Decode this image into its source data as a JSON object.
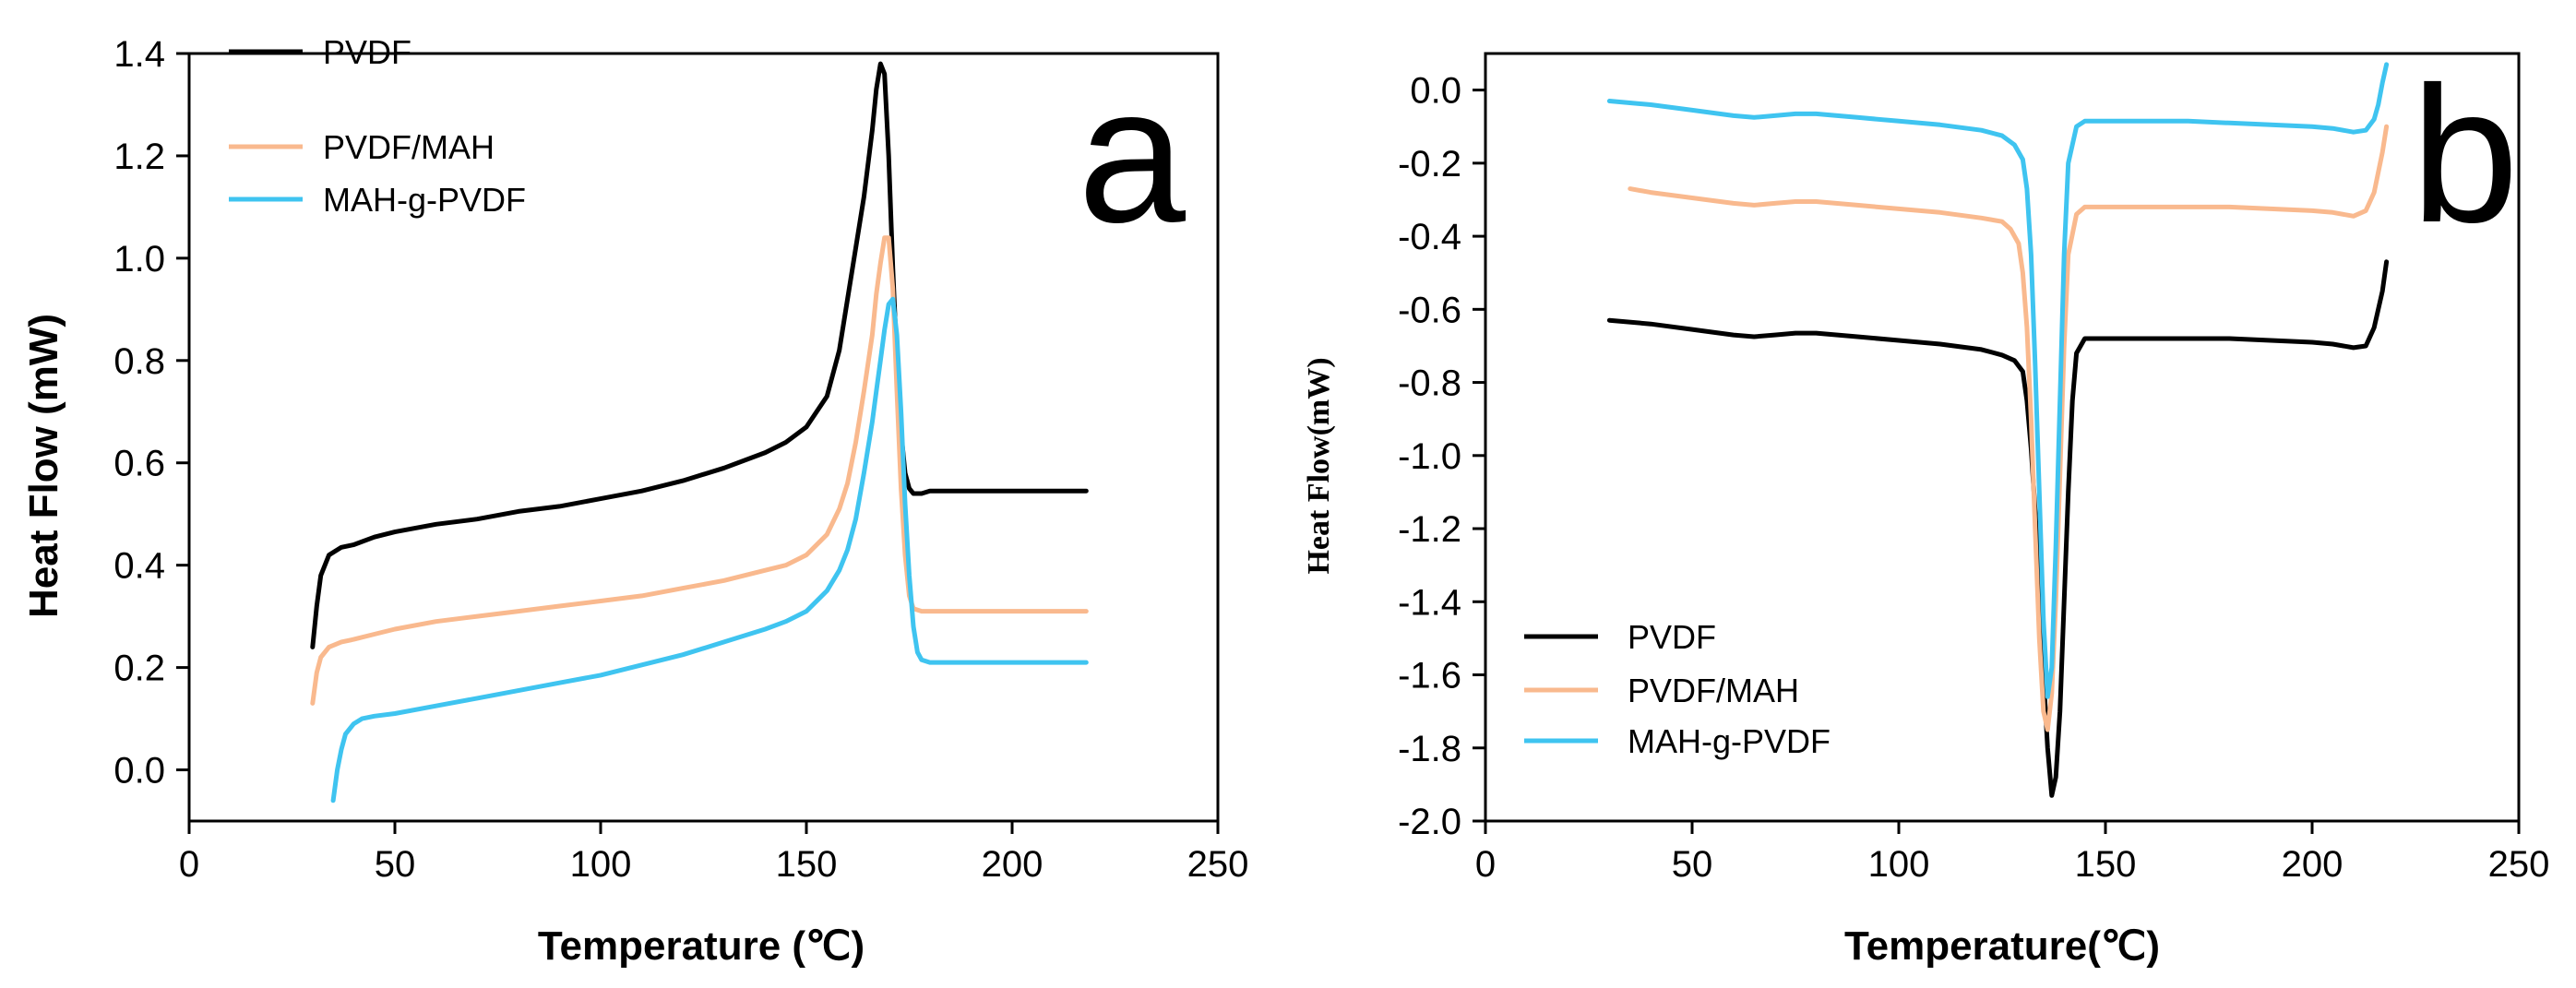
{
  "colors": {
    "PVDF": "#000000",
    "PVDF/MAH": "#f9b98e",
    "MAH-g-PVDF": "#3fc4f0"
  },
  "chart_data": [
    {
      "type": "line",
      "panel_label": "a",
      "xlabel": "Temperature (℃)",
      "ylabel": "Heat Flow (mW)",
      "xlim": [
        0,
        250
      ],
      "ylim": [
        -0.1,
        1.4
      ],
      "x_ticks": [
        0,
        50,
        100,
        150,
        200,
        250
      ],
      "y_ticks": [
        0.0,
        0.2,
        0.4,
        0.6,
        0.8,
        1.0,
        1.2,
        1.4
      ],
      "y_tick_labels": [
        "0.0",
        "0.2",
        "0.4",
        "0.6",
        "0.8",
        "1.0",
        "1.2",
        "1.4"
      ],
      "legend_position": "top-left",
      "series": [
        {
          "name": "PVDF",
          "color": "#000000",
          "x": [
            30,
            31,
            32,
            34,
            37,
            40,
            45,
            50,
            60,
            70,
            80,
            90,
            100,
            110,
            120,
            130,
            140,
            145,
            150,
            155,
            158,
            160,
            162,
            164,
            166,
            167,
            168,
            169,
            170,
            171,
            172,
            173,
            174,
            175,
            176,
            178,
            180,
            190,
            200,
            210,
            218
          ],
          "y": [
            0.24,
            0.32,
            0.38,
            0.42,
            0.435,
            0.44,
            0.455,
            0.465,
            0.48,
            0.49,
            0.505,
            0.515,
            0.53,
            0.545,
            0.565,
            0.59,
            0.62,
            0.64,
            0.67,
            0.73,
            0.82,
            0.92,
            1.02,
            1.12,
            1.25,
            1.33,
            1.38,
            1.36,
            1.2,
            0.98,
            0.8,
            0.66,
            0.58,
            0.55,
            0.54,
            0.54,
            0.545,
            0.545,
            0.545,
            0.545,
            0.545
          ]
        },
        {
          "name": "PVDF/MAH",
          "color": "#f9b98e",
          "x": [
            30,
            31,
            32,
            34,
            37,
            40,
            45,
            50,
            60,
            70,
            80,
            90,
            100,
            110,
            120,
            130,
            140,
            145,
            150,
            155,
            158,
            160,
            162,
            164,
            166,
            167,
            168,
            169,
            170,
            171,
            172,
            173,
            174,
            175,
            176,
            178,
            180,
            190,
            200,
            210,
            218
          ],
          "y": [
            0.13,
            0.19,
            0.22,
            0.24,
            0.25,
            0.255,
            0.265,
            0.275,
            0.29,
            0.3,
            0.31,
            0.32,
            0.33,
            0.34,
            0.355,
            0.37,
            0.39,
            0.4,
            0.42,
            0.46,
            0.51,
            0.56,
            0.64,
            0.74,
            0.85,
            0.93,
            0.99,
            1.04,
            1.04,
            0.94,
            0.74,
            0.55,
            0.42,
            0.34,
            0.315,
            0.31,
            0.31,
            0.31,
            0.31,
            0.31,
            0.31
          ]
        },
        {
          "name": "MAH-g-PVDF",
          "color": "#3fc4f0",
          "x": [
            35,
            36,
            37,
            38,
            40,
            42,
            45,
            50,
            60,
            70,
            80,
            90,
            100,
            110,
            120,
            130,
            140,
            145,
            150,
            155,
            158,
            160,
            162,
            164,
            166,
            167,
            168,
            169,
            170,
            171,
            172,
            173,
            174,
            175,
            176,
            177,
            178,
            180,
            190,
            200,
            210,
            218
          ],
          "y": [
            -0.06,
            0.0,
            0.04,
            0.07,
            0.09,
            0.1,
            0.105,
            0.11,
            0.125,
            0.14,
            0.155,
            0.17,
            0.185,
            0.205,
            0.225,
            0.25,
            0.275,
            0.29,
            0.31,
            0.35,
            0.39,
            0.43,
            0.49,
            0.58,
            0.68,
            0.74,
            0.8,
            0.86,
            0.91,
            0.92,
            0.85,
            0.7,
            0.52,
            0.38,
            0.28,
            0.23,
            0.215,
            0.21,
            0.21,
            0.21,
            0.21,
            0.21
          ]
        }
      ]
    },
    {
      "type": "line",
      "panel_label": "b",
      "xlabel": "Temperature(℃)",
      "ylabel": "Heat Flow(mW)",
      "xlim": [
        0,
        250
      ],
      "ylim": [
        -2.0,
        0.1
      ],
      "x_ticks": [
        0,
        50,
        100,
        150,
        200,
        250
      ],
      "y_ticks": [
        0.0,
        -0.2,
        -0.4,
        -0.6,
        -0.8,
        -1.0,
        -1.2,
        -1.4,
        -1.6,
        -1.8,
        -2.0
      ],
      "y_tick_labels": [
        "0.0",
        "-0.2",
        "-0.4",
        "-0.6",
        "-0.8",
        "-1.0",
        "-1.2",
        "-1.4",
        "-1.6",
        "-1.8",
        "-2.0"
      ],
      "legend_position": "bottom-left",
      "series": [
        {
          "name": "PVDF",
          "color": "#000000",
          "x": [
            30,
            40,
            50,
            60,
            65,
            70,
            75,
            80,
            90,
            100,
            110,
            120,
            125,
            128,
            130,
            131,
            132,
            133,
            134,
            135,
            136,
            137,
            138,
            139,
            140,
            141,
            142,
            143,
            145,
            150,
            160,
            170,
            180,
            190,
            200,
            205,
            210,
            213,
            215,
            217,
            218
          ],
          "y": [
            -0.63,
            -0.64,
            -0.655,
            -0.67,
            -0.675,
            -0.67,
            -0.665,
            -0.665,
            -0.675,
            -0.685,
            -0.695,
            -0.71,
            -0.725,
            -0.74,
            -0.77,
            -0.85,
            -0.98,
            -1.15,
            -1.35,
            -1.6,
            -1.8,
            -1.93,
            -1.88,
            -1.7,
            -1.4,
            -1.1,
            -0.85,
            -0.72,
            -0.68,
            -0.68,
            -0.68,
            -0.68,
            -0.68,
            -0.685,
            -0.69,
            -0.695,
            -0.705,
            -0.7,
            -0.65,
            -0.55,
            -0.47
          ]
        },
        {
          "name": "PVDF/MAH",
          "color": "#f9b98e",
          "x": [
            35,
            40,
            50,
            60,
            65,
            70,
            75,
            80,
            90,
            100,
            110,
            120,
            125,
            127,
            129,
            130,
            131,
            132,
            133,
            134,
            135,
            136,
            137,
            138,
            139,
            140,
            141,
            143,
            145,
            150,
            160,
            170,
            180,
            190,
            200,
            205,
            210,
            213,
            215,
            217,
            218
          ],
          "y": [
            -0.27,
            -0.28,
            -0.295,
            -0.31,
            -0.315,
            -0.31,
            -0.305,
            -0.305,
            -0.315,
            -0.325,
            -0.335,
            -0.35,
            -0.36,
            -0.38,
            -0.42,
            -0.5,
            -0.65,
            -0.9,
            -1.2,
            -1.5,
            -1.7,
            -1.75,
            -1.65,
            -1.4,
            -1.05,
            -0.7,
            -0.45,
            -0.34,
            -0.32,
            -0.32,
            -0.32,
            -0.32,
            -0.32,
            -0.325,
            -0.33,
            -0.335,
            -0.345,
            -0.33,
            -0.28,
            -0.17,
            -0.1
          ]
        },
        {
          "name": "MAH-g-PVDF",
          "color": "#3fc4f0",
          "x": [
            30,
            40,
            50,
            60,
            65,
            70,
            75,
            80,
            90,
            100,
            110,
            120,
            125,
            128,
            130,
            131,
            132,
            133,
            134,
            135,
            136,
            137,
            138,
            139,
            140,
            141,
            143,
            145,
            150,
            160,
            170,
            180,
            190,
            200,
            205,
            210,
            213,
            215,
            216,
            217,
            218
          ],
          "y": [
            -0.03,
            -0.04,
            -0.055,
            -0.07,
            -0.075,
            -0.07,
            -0.065,
            -0.065,
            -0.075,
            -0.085,
            -0.095,
            -0.11,
            -0.125,
            -0.15,
            -0.19,
            -0.27,
            -0.45,
            -0.75,
            -1.1,
            -1.45,
            -1.66,
            -1.58,
            -1.25,
            -0.85,
            -0.45,
            -0.2,
            -0.1,
            -0.085,
            -0.085,
            -0.085,
            -0.085,
            -0.09,
            -0.095,
            -0.1,
            -0.105,
            -0.115,
            -0.11,
            -0.08,
            -0.04,
            0.02,
            0.07
          ]
        }
      ]
    }
  ]
}
